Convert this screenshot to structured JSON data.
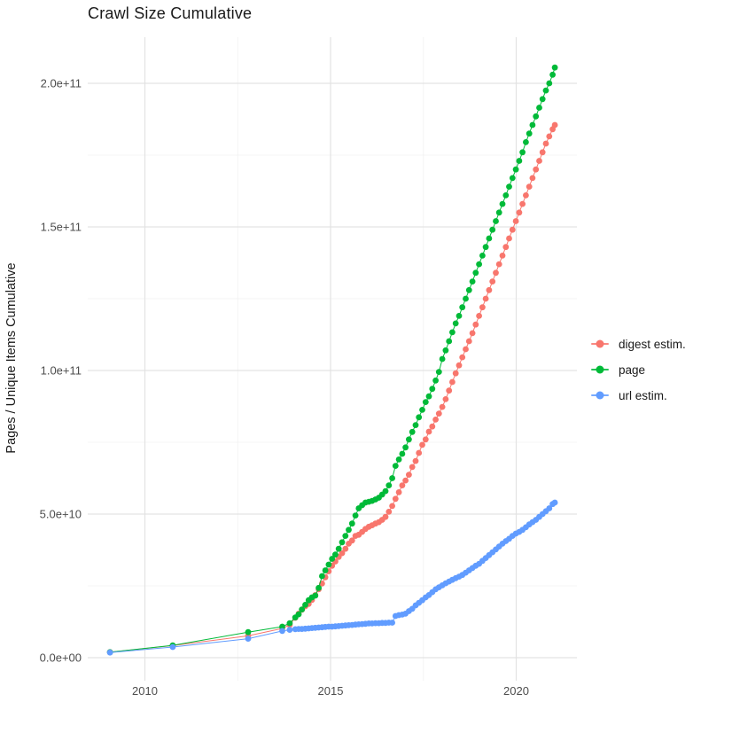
{
  "page": {
    "background": "#ffffff"
  },
  "chart": {
    "title": "Crawl Size Cumulative",
    "y_axis_label": "Pages / Unique Items Cumulative"
  },
  "chart_data": {
    "type": "scatter",
    "title": "Crawl Size Cumulative",
    "xlabel": "",
    "ylabel": "Pages / Unique Items Cumulative",
    "legend_position": "right",
    "grid": true,
    "xlim": [
      2008.45,
      2021.65
    ],
    "ylim_e9": [
      -8,
      216
    ],
    "x_tick_labels": [
      "2010",
      "2015",
      "2020"
    ],
    "x_tick_values": [
      2010,
      2015,
      2020
    ],
    "x_minor_tick_values": [
      2012.5,
      2017.5
    ],
    "y_tick_labels": [
      "0.0e+00",
      "5.0e+10",
      "1.0e+11",
      "1.5e+11",
      "2.0e+11"
    ],
    "y_tick_values_e9": [
      0,
      50,
      100,
      150,
      200
    ],
    "y_minor_tick_values_e9": [
      25,
      75,
      125,
      175
    ],
    "grid_major_color": "#e3e3e3",
    "grid_minor_color": "#f0f0f0",
    "tick_label_color": "#4d4d4d",
    "x_unit": "year (decimal)",
    "y_unit": "cumulative count, values in billions (1e9)",
    "x": [
      2009.06,
      2010.75,
      2012.78,
      2013.7,
      2013.9,
      2014.05,
      2014.14,
      2014.23,
      2014.32,
      2014.41,
      2014.5,
      2014.59,
      2014.68,
      2014.77,
      2014.86,
      2014.95,
      2015.04,
      2015.13,
      2015.22,
      2015.31,
      2015.4,
      2015.49,
      2015.58,
      2015.67,
      2015.76,
      2015.85,
      2015.94,
      2016.03,
      2016.12,
      2016.21,
      2016.3,
      2016.39,
      2016.48,
      2016.57,
      2016.66,
      2016.75,
      2016.84,
      2016.93,
      2017.02,
      2017.11,
      2017.2,
      2017.29,
      2017.38,
      2017.47,
      2017.56,
      2017.65,
      2017.74,
      2017.83,
      2017.92,
      2018.01,
      2018.1,
      2018.19,
      2018.28,
      2018.37,
      2018.46,
      2018.55,
      2018.64,
      2018.73,
      2018.82,
      2018.91,
      2019.0,
      2019.09,
      2019.18,
      2019.27,
      2019.36,
      2019.45,
      2019.54,
      2019.63,
      2019.72,
      2019.81,
      2019.9,
      2019.99,
      2020.08,
      2020.17,
      2020.26,
      2020.35,
      2020.44,
      2020.53,
      2020.62,
      2020.71,
      2020.8,
      2020.89,
      2020.98,
      2021.04
    ],
    "series": [
      {
        "name": "digest estim.",
        "color": "#F8766D",
        "values_e9": [
          1.9,
          4.2,
          7.6,
          10.2,
          11.4,
          13.9,
          15.3,
          16.7,
          17.9,
          18.7,
          20.1,
          21.8,
          23.8,
          25.8,
          28.0,
          30.1,
          32.0,
          33.5,
          35.1,
          36.4,
          37.9,
          39.7,
          40.8,
          42.4,
          42.8,
          43.8,
          44.8,
          45.6,
          46.1,
          46.7,
          47.2,
          48.0,
          49.0,
          50.8,
          52.8,
          55.3,
          57.6,
          60.0,
          61.7,
          63.7,
          66.4,
          68.5,
          71.3,
          74.1,
          76.0,
          78.7,
          80.5,
          82.9,
          85.0,
          87.3,
          90.0,
          93.0,
          96.0,
          99.0,
          101.8,
          104.6,
          107.4,
          110.2,
          113.0,
          116.0,
          119.0,
          122.0,
          125.0,
          128.0,
          131.0,
          134.0,
          137.0,
          140.0,
          143.0,
          146.0,
          149.0,
          152.0,
          155.0,
          158.0,
          161.0,
          164.0,
          167.0,
          170.0,
          173.0,
          176.0,
          179.0,
          181.5,
          184.0,
          185.5
        ]
      },
      {
        "name": "page",
        "color": "#00BA38",
        "values_e9": [
          1.9,
          4.3,
          8.9,
          10.8,
          12.0,
          14.0,
          15.1,
          16.8,
          18.4,
          20.0,
          21.0,
          21.6,
          24.3,
          28.4,
          30.4,
          32.4,
          34.4,
          35.9,
          37.9,
          40.2,
          42.4,
          44.5,
          46.7,
          49.5,
          52.0,
          53.1,
          54.0,
          54.3,
          54.6,
          55.1,
          55.7,
          56.8,
          58.0,
          60.0,
          62.5,
          66.8,
          69.0,
          71.0,
          73.2,
          76.0,
          78.6,
          81.0,
          83.7,
          86.3,
          89.0,
          91.0,
          93.6,
          96.5,
          99.5,
          104.0,
          107.0,
          110.2,
          113.3,
          116.4,
          119.0,
          122.0,
          125.0,
          128.0,
          131.0,
          134.0,
          137.0,
          140.0,
          143.0,
          146.0,
          149.0,
          152.0,
          155.0,
          158.0,
          161.0,
          164.0,
          167.0,
          170.0,
          173.0,
          176.0,
          179.5,
          182.5,
          185.5,
          188.5,
          191.5,
          194.5,
          197.5,
          200.0,
          203.0,
          205.5
        ]
      },
      {
        "name": "url estim.",
        "color": "#619CFF",
        "values_e9": [
          1.8,
          3.7,
          6.6,
          9.3,
          9.7,
          9.9,
          10.0,
          10.0,
          10.1,
          10.2,
          10.3,
          10.4,
          10.5,
          10.6,
          10.7,
          10.8,
          10.8,
          10.9,
          11.0,
          11.1,
          11.2,
          11.3,
          11.4,
          11.5,
          11.6,
          11.7,
          11.8,
          11.9,
          11.9,
          12.0,
          12.0,
          12.1,
          12.1,
          12.2,
          12.2,
          14.5,
          14.8,
          15.0,
          15.3,
          16.2,
          17.0,
          18.2,
          19.1,
          20.0,
          21.0,
          21.8,
          22.8,
          23.8,
          24.5,
          25.2,
          25.9,
          26.5,
          27.1,
          27.7,
          28.2,
          28.8,
          29.6,
          30.4,
          31.2,
          32.0,
          32.7,
          33.7,
          34.7,
          35.7,
          36.7,
          37.7,
          38.7,
          39.7,
          40.6,
          41.4,
          42.4,
          43.2,
          43.8,
          44.5,
          45.4,
          46.4,
          47.2,
          48.0,
          49.0,
          50.0,
          51.0,
          52.0,
          53.5,
          54.0
        ]
      }
    ]
  }
}
